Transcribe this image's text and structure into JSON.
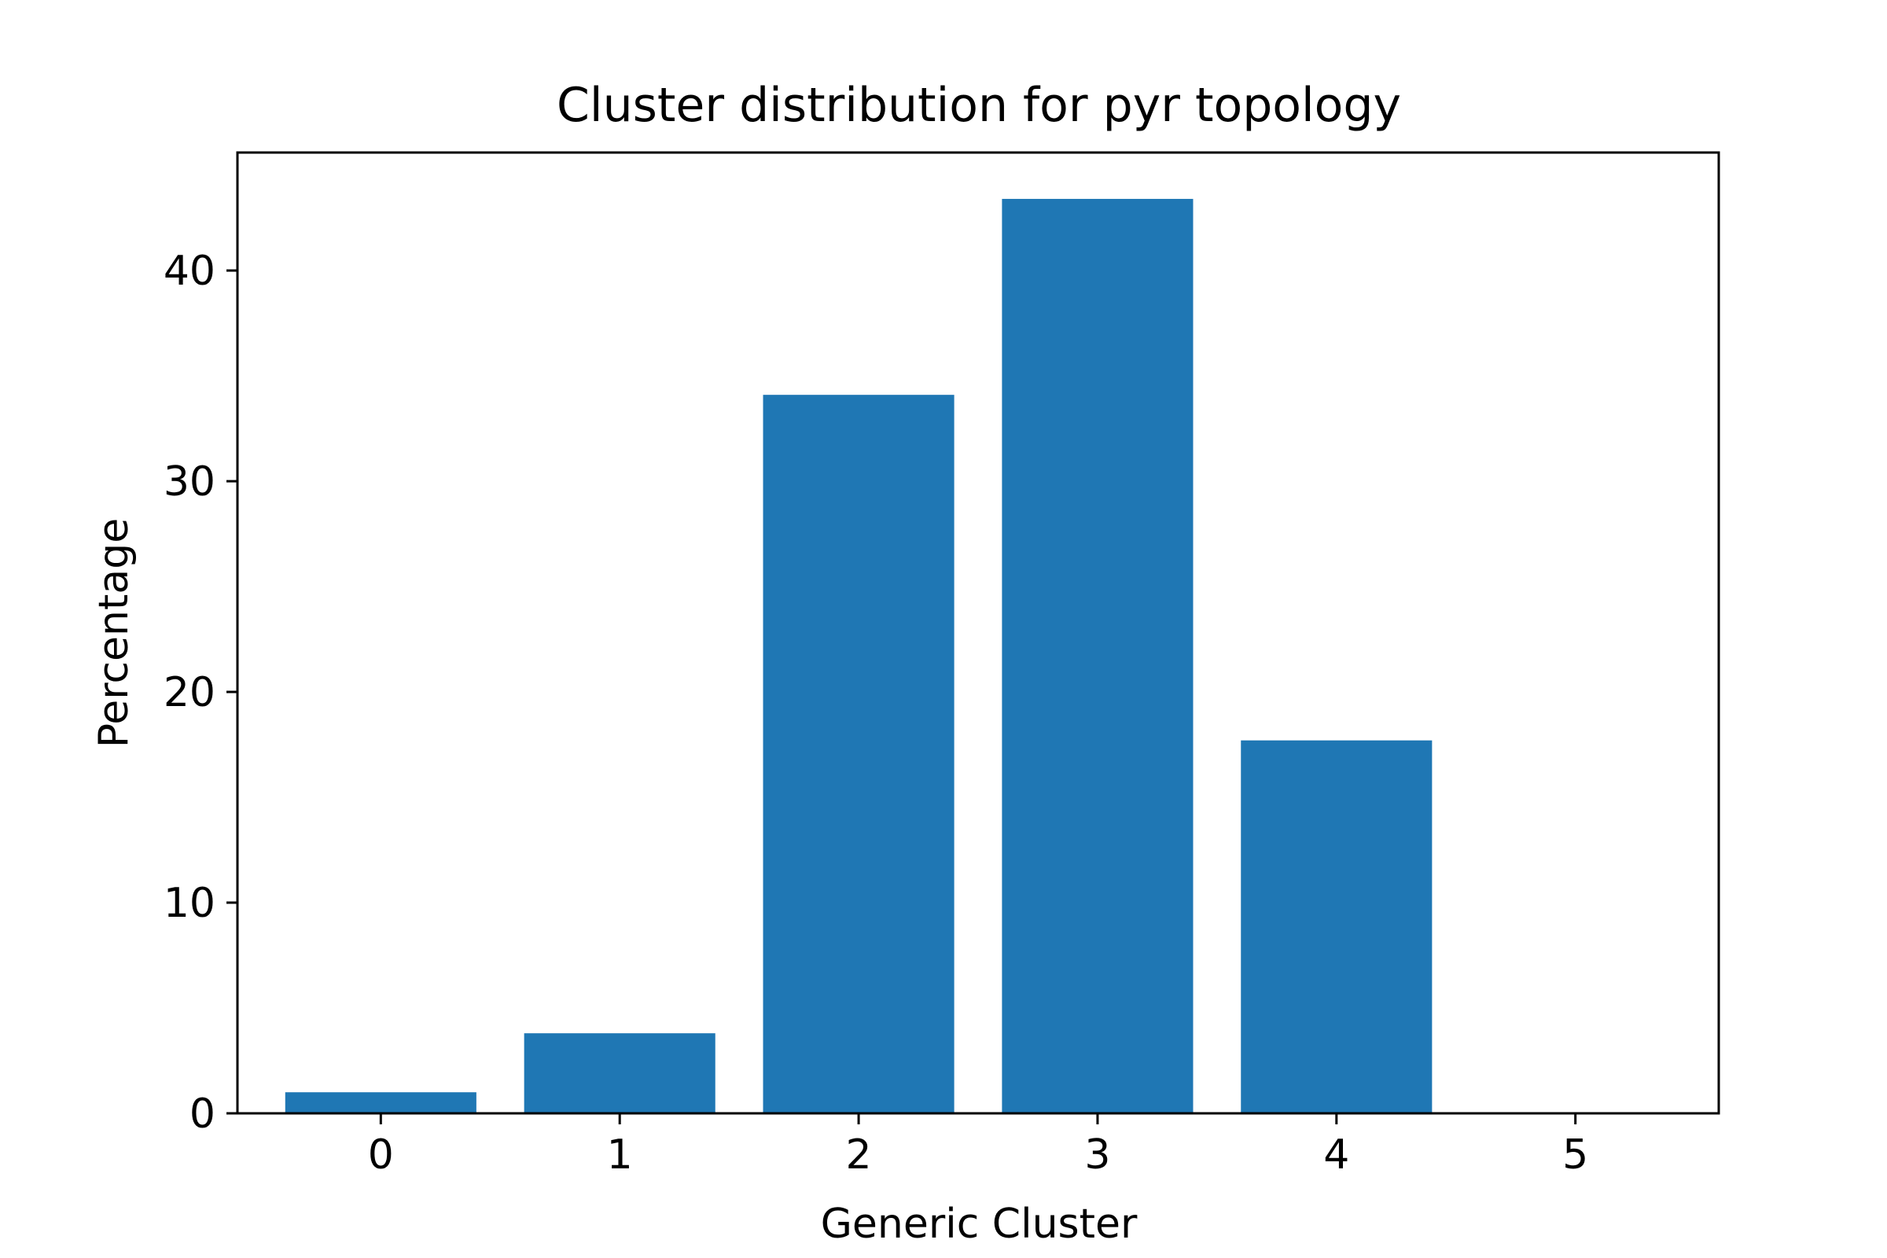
{
  "chart_data": {
    "type": "bar",
    "title": "Cluster distribution for pyr topology",
    "xlabel": "Generic Cluster",
    "ylabel": "Percentage",
    "categories": [
      "0",
      "1",
      "2",
      "3",
      "4",
      "5"
    ],
    "values": [
      1.0,
      3.8,
      34.1,
      43.4,
      17.7,
      0.0
    ],
    "ylim": [
      0,
      45.6
    ],
    "yticks": [
      0,
      10,
      20,
      30,
      40
    ],
    "ytick_labels": [
      "0",
      "10",
      "20",
      "30",
      "40"
    ],
    "bar_color": "#1f77b4",
    "grid": false,
    "legend": "none"
  }
}
